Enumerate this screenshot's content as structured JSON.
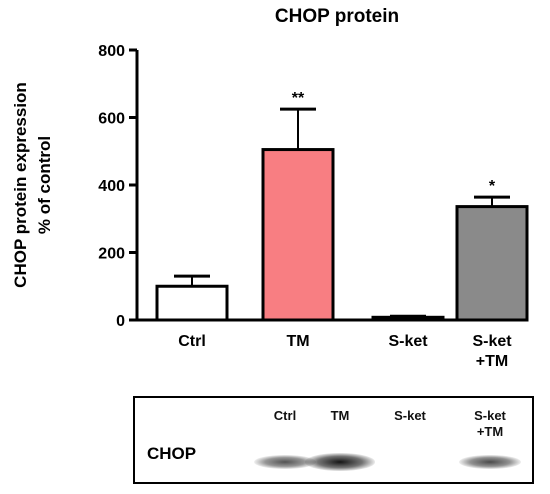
{
  "chart_data": {
    "type": "bar",
    "title": "CHOP protein",
    "ylabel_line1": "CHOP protein expression",
    "ylabel_line2": "% of control",
    "ylim": [
      0,
      800
    ],
    "yticks": [
      "0",
      "200",
      "400",
      "600",
      "800"
    ],
    "categories": [
      {
        "lines": [
          "Ctrl"
        ]
      },
      {
        "lines": [
          "TM"
        ]
      },
      {
        "lines": [
          "S-ket"
        ]
      },
      {
        "lines": [
          "S-ket",
          "+TM"
        ]
      }
    ],
    "values": [
      100,
      505,
      8,
      336
    ],
    "errors": [
      30,
      120,
      3,
      28
    ],
    "significance": [
      "",
      "**",
      "",
      "*"
    ],
    "colors": [
      "#ffffff",
      "#f87e82",
      "#ffffff",
      "#8a8a8a"
    ]
  },
  "blot": {
    "row_label": "CHOP",
    "lanes": [
      {
        "line1": "Ctrl",
        "line2": ""
      },
      {
        "line1": "TM",
        "line2": ""
      },
      {
        "line1": "S-ket",
        "line2": ""
      },
      {
        "line1": "S-ket",
        "line2": "+TM"
      }
    ],
    "band_intensity": [
      0.55,
      0.95,
      0.0,
      0.6
    ]
  }
}
